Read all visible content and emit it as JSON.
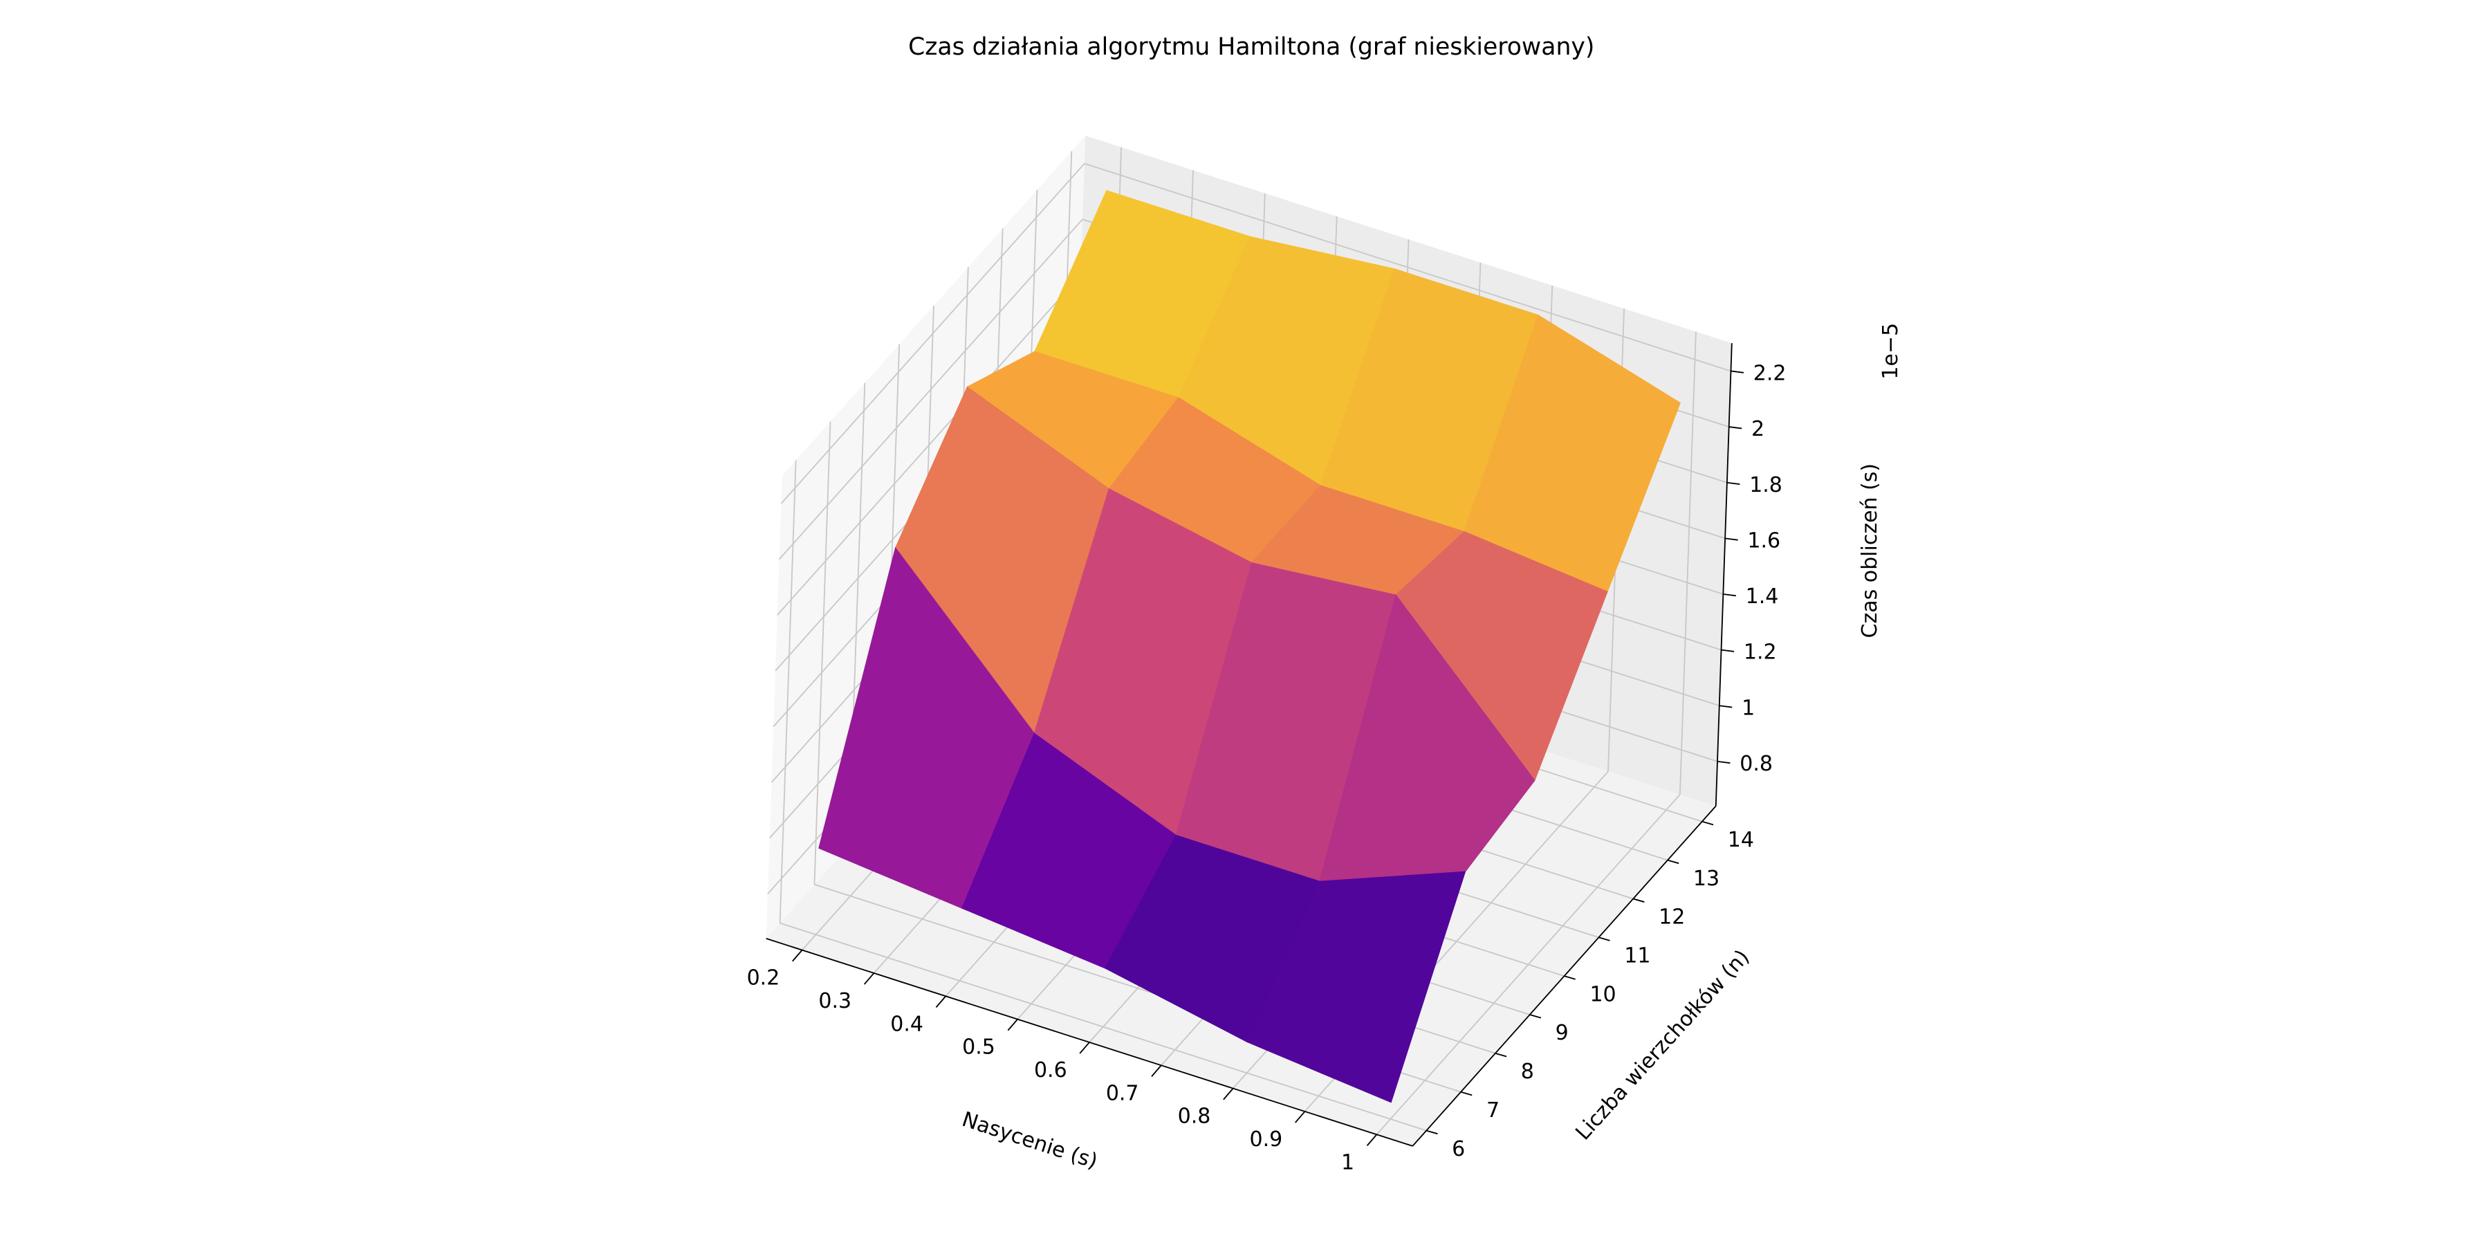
{
  "chart_data": {
    "type": "surface3d",
    "title": "Czas działania algorytmu Hamiltona (graf nieskierowany)",
    "xlabel": "Nasycenie (s)",
    "ylabel": "Liczba wierzchołków (n)",
    "zlabel": "Czas obliczeń (s)",
    "z_offset_label": "1e−5",
    "cmap": "plasma",
    "x": [
      0.2,
      0.4,
      0.6,
      0.8,
      1.0
    ],
    "y": [
      6,
      8,
      10,
      12,
      14
    ],
    "z": [
      [
        0.95,
        0.9,
        0.85,
        0.75,
        0.7
      ],
      [
        1.75,
        1.25,
        1.05,
        1.05,
        1.25
      ],
      [
        2.05,
        1.85,
        1.75,
        1.8,
        1.3
      ],
      [
        1.9,
        1.9,
        1.75,
        1.75,
        1.7
      ],
      [
        2.2,
        2.2,
        2.25,
        2.25,
        2.1
      ]
    ],
    "xlim": [
      0.15,
      1.05
    ],
    "ylim": [
      5.6,
      14.4
    ],
    "zlim": [
      0.64,
      2.3
    ],
    "xticks": [
      0.2,
      0.3,
      0.4,
      0.5,
      0.6,
      0.7,
      0.8,
      0.9,
      1.0
    ],
    "yticks": [
      6,
      7,
      8,
      9,
      10,
      11,
      12,
      13,
      14
    ],
    "zticks": [
      0.8,
      1.0,
      1.2,
      1.4,
      1.6,
      1.8,
      2.0,
      2.2
    ],
    "grid": true
  }
}
